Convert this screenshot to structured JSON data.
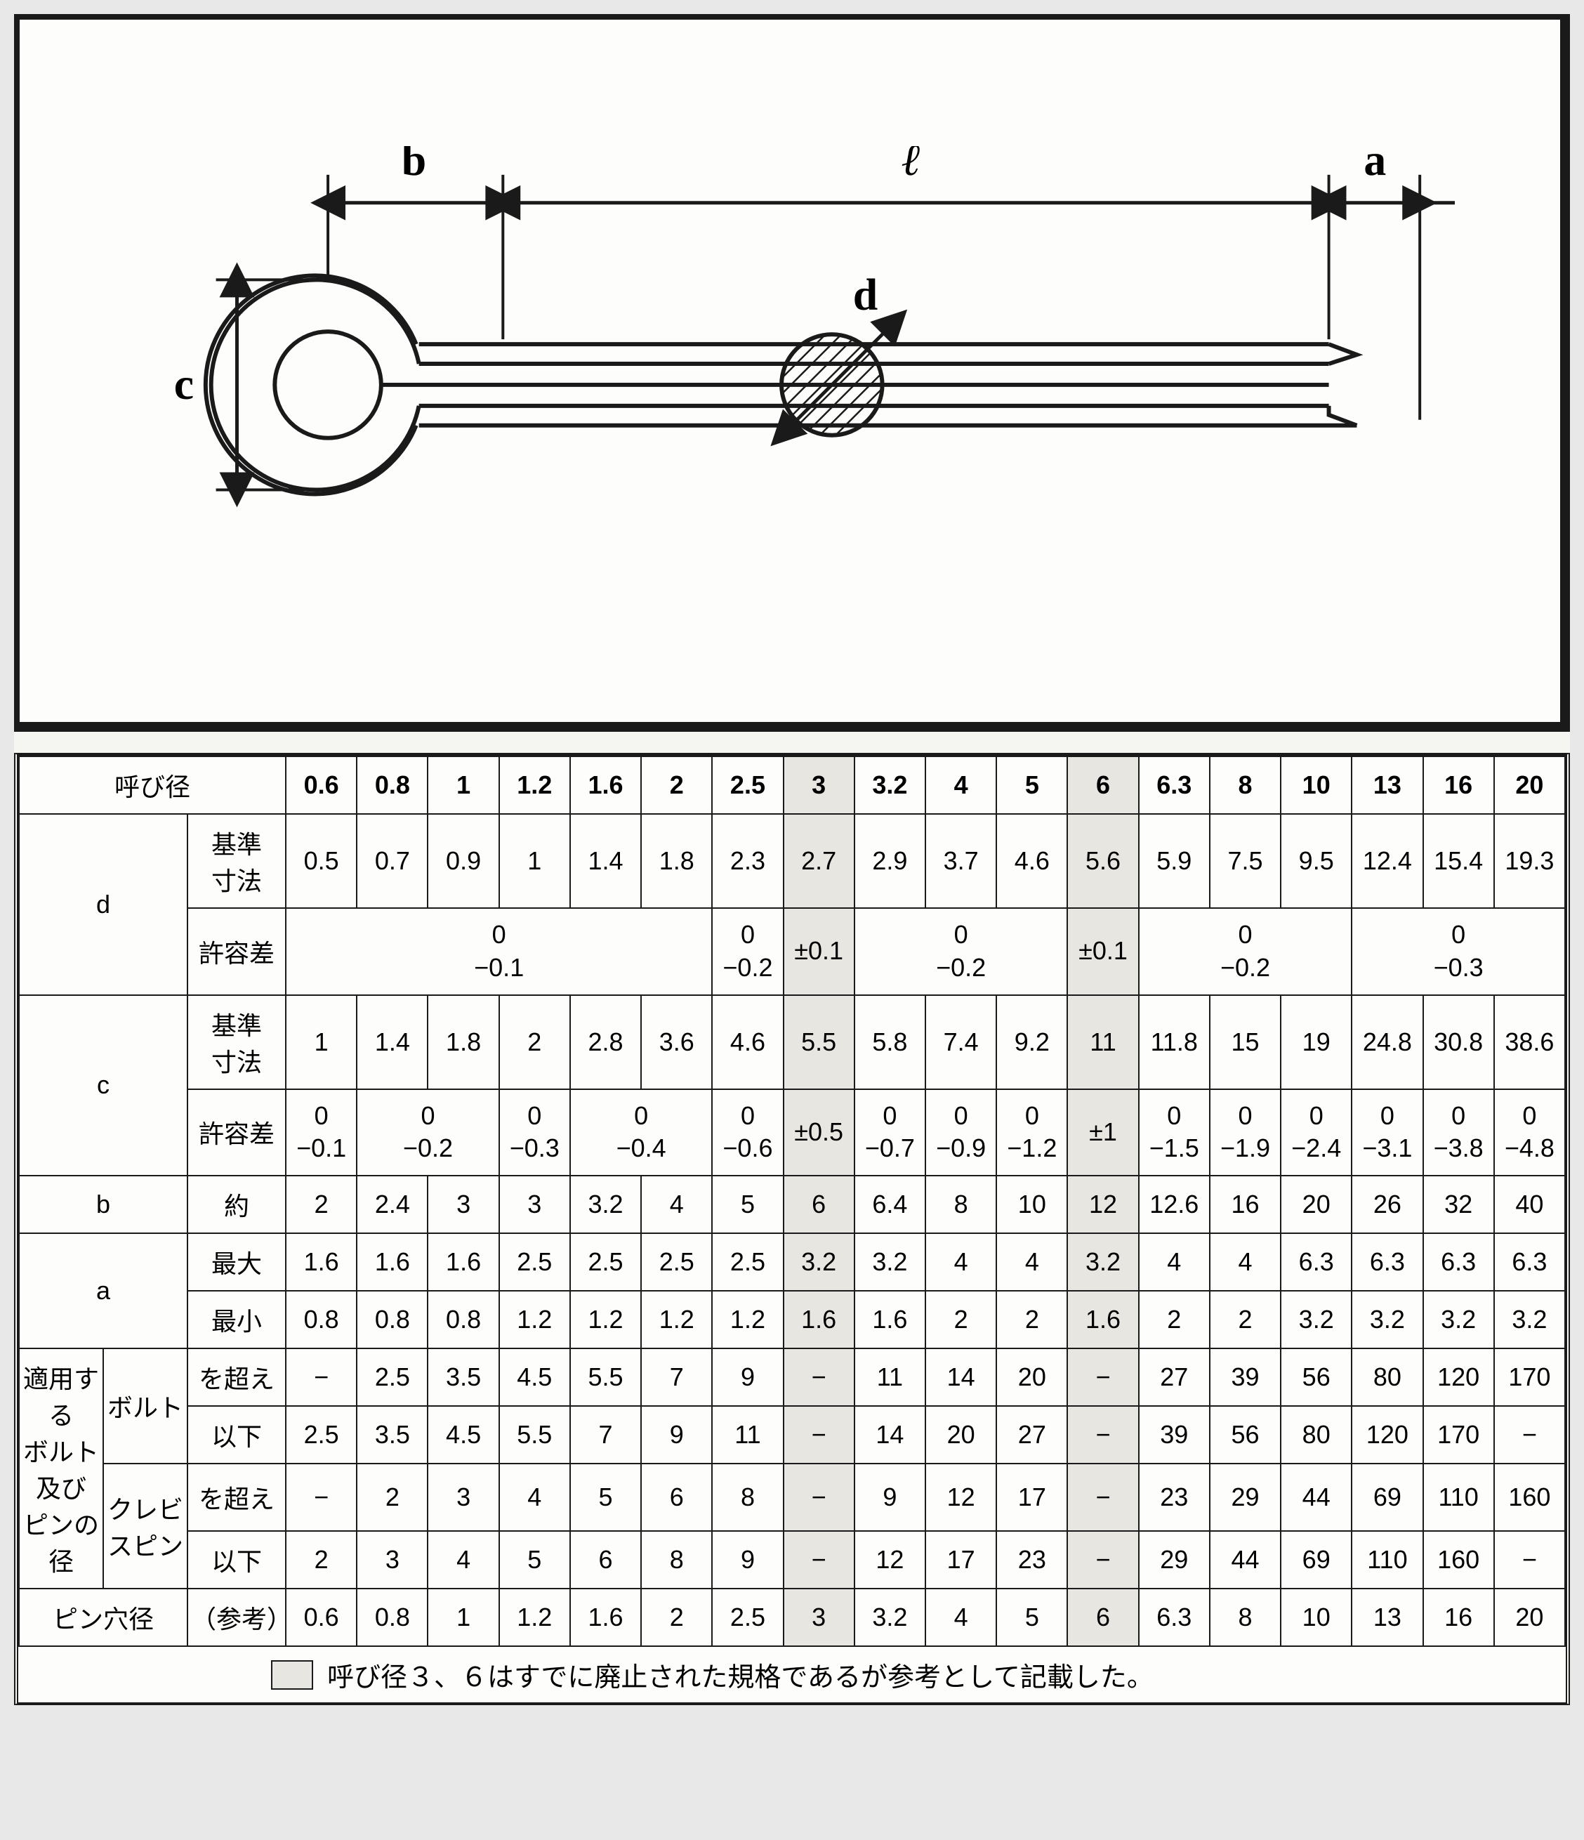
{
  "colors": {
    "stroke": "#1a1a1a",
    "bg": "#fdfdfb",
    "highlight": "#e8e6e0"
  },
  "diagram": {
    "labels": {
      "b": "b",
      "l": "ℓ",
      "a": "a",
      "c": "c",
      "d": "d"
    },
    "stroke_width": 6,
    "font_size": 64
  },
  "table": {
    "header_label": "呼び径",
    "sizes": [
      "0.6",
      "0.8",
      "1",
      "1.2",
      "1.6",
      "2",
      "2.5",
      "3",
      "3.2",
      "4",
      "5",
      "6",
      "6.3",
      "8",
      "10",
      "13",
      "16",
      "20"
    ],
    "highlight_cols": [
      7,
      11
    ],
    "groups": [
      {
        "key": "d",
        "rows": [
          {
            "label": "基準\n寸法",
            "cells": [
              "0.5",
              "0.7",
              "0.9",
              "1",
              "1.4",
              "1.8",
              "2.3",
              "2.7",
              "2.9",
              "3.7",
              "4.6",
              "5.6",
              "5.9",
              "7.5",
              "9.5",
              "12.4",
              "15.4",
              "19.3"
            ]
          },
          {
            "label": "許容差",
            "tolerance": true,
            "spans": [
              {
                "span": 6,
                "top": "0",
                "bot": "−0.1"
              },
              {
                "span": 1,
                "top": "0",
                "bot": "−0.2"
              },
              {
                "span": 1,
                "top": "±0.1",
                "bot": ""
              },
              {
                "span": 3,
                "top": "0",
                "bot": "−0.2"
              },
              {
                "span": 1,
                "top": "±0.1",
                "bot": ""
              },
              {
                "span": 3,
                "top": "0",
                "bot": "−0.2"
              },
              {
                "span": 3,
                "top": "0",
                "bot": "−0.3"
              }
            ]
          }
        ]
      },
      {
        "key": "c",
        "rows": [
          {
            "label": "基準\n寸法",
            "cells": [
              "1",
              "1.4",
              "1.8",
              "2",
              "2.8",
              "3.6",
              "4.6",
              "5.5",
              "5.8",
              "7.4",
              "9.2",
              "11",
              "11.8",
              "15",
              "19",
              "24.8",
              "30.8",
              "38.6"
            ]
          },
          {
            "label": "許容差",
            "tolerance": true,
            "spans": [
              {
                "span": 1,
                "top": "0",
                "bot": "−0.1"
              },
              {
                "span": 2,
                "top": "0",
                "bot": "−0.2"
              },
              {
                "span": 1,
                "top": "0",
                "bot": "−0.3"
              },
              {
                "span": 2,
                "top": "0",
                "bot": "−0.4"
              },
              {
                "span": 1,
                "top": "0",
                "bot": "−0.6"
              },
              {
                "span": 1,
                "top": "±0.5",
                "bot": ""
              },
              {
                "span": 1,
                "top": "0",
                "bot": "−0.7"
              },
              {
                "span": 1,
                "top": "0",
                "bot": "−0.9"
              },
              {
                "span": 1,
                "top": "0",
                "bot": "−1.2"
              },
              {
                "span": 1,
                "top": "±1",
                "bot": ""
              },
              {
                "span": 1,
                "top": "0",
                "bot": "−1.5"
              },
              {
                "span": 1,
                "top": "0",
                "bot": "−1.9"
              },
              {
                "span": 1,
                "top": "0",
                "bot": "−2.4"
              },
              {
                "span": 1,
                "top": "0",
                "bot": "−3.1"
              },
              {
                "span": 1,
                "top": "0",
                "bot": "−3.8"
              },
              {
                "span": 1,
                "top": "0",
                "bot": "−4.8"
              }
            ]
          }
        ]
      },
      {
        "key": "b",
        "rows": [
          {
            "label": "約",
            "cells": [
              "2",
              "2.4",
              "3",
              "3",
              "3.2",
              "4",
              "5",
              "6",
              "6.4",
              "8",
              "10",
              "12",
              "12.6",
              "16",
              "20",
              "26",
              "32",
              "40"
            ]
          }
        ]
      },
      {
        "key": "a",
        "rows": [
          {
            "label": "最大",
            "cells": [
              "1.6",
              "1.6",
              "1.6",
              "2.5",
              "2.5",
              "2.5",
              "2.5",
              "3.2",
              "3.2",
              "4",
              "4",
              "3.2",
              "4",
              "4",
              "6.3",
              "6.3",
              "6.3",
              "6.3"
            ]
          },
          {
            "label": "最小",
            "cells": [
              "0.8",
              "0.8",
              "0.8",
              "1.2",
              "1.2",
              "1.2",
              "1.2",
              "1.6",
              "1.6",
              "2",
              "2",
              "1.6",
              "2",
              "2",
              "3.2",
              "3.2",
              "3.2",
              "3.2"
            ]
          }
        ]
      },
      {
        "key_multi": "適用する\nボルト及び\nピンの径",
        "sub": [
          {
            "sublabel": "ボルト",
            "rows": [
              {
                "label": "を超え",
                "cells": [
                  "−",
                  "2.5",
                  "3.5",
                  "4.5",
                  "5.5",
                  "7",
                  "9",
                  "−",
                  "11",
                  "14",
                  "20",
                  "−",
                  "27",
                  "39",
                  "56",
                  "80",
                  "120",
                  "170"
                ]
              },
              {
                "label": "以下",
                "cells": [
                  "2.5",
                  "3.5",
                  "4.5",
                  "5.5",
                  "7",
                  "9",
                  "11",
                  "−",
                  "14",
                  "20",
                  "27",
                  "−",
                  "39",
                  "56",
                  "80",
                  "120",
                  "170",
                  "−"
                ]
              }
            ]
          },
          {
            "sublabel": "クレビ\nスピン",
            "rows": [
              {
                "label": "を超え",
                "cells": [
                  "−",
                  "2",
                  "3",
                  "4",
                  "5",
                  "6",
                  "8",
                  "−",
                  "9",
                  "12",
                  "17",
                  "−",
                  "23",
                  "29",
                  "44",
                  "69",
                  "110",
                  "160"
                ]
              },
              {
                "label": "以下",
                "cells": [
                  "2",
                  "3",
                  "4",
                  "5",
                  "6",
                  "8",
                  "9",
                  "−",
                  "12",
                  "17",
                  "23",
                  "−",
                  "29",
                  "44",
                  "69",
                  "110",
                  "160",
                  "−"
                ]
              }
            ]
          }
        ]
      },
      {
        "key": "ピン穴径",
        "rows": [
          {
            "label": "（参考）",
            "cells": [
              "0.6",
              "0.8",
              "1",
              "1.2",
              "1.6",
              "2",
              "2.5",
              "3",
              "3.2",
              "4",
              "5",
              "6",
              "6.3",
              "8",
              "10",
              "13",
              "16",
              "20"
            ]
          }
        ]
      }
    ],
    "footnote": "呼び径３、６はすでに廃止された規格であるが参考として記載した。"
  }
}
